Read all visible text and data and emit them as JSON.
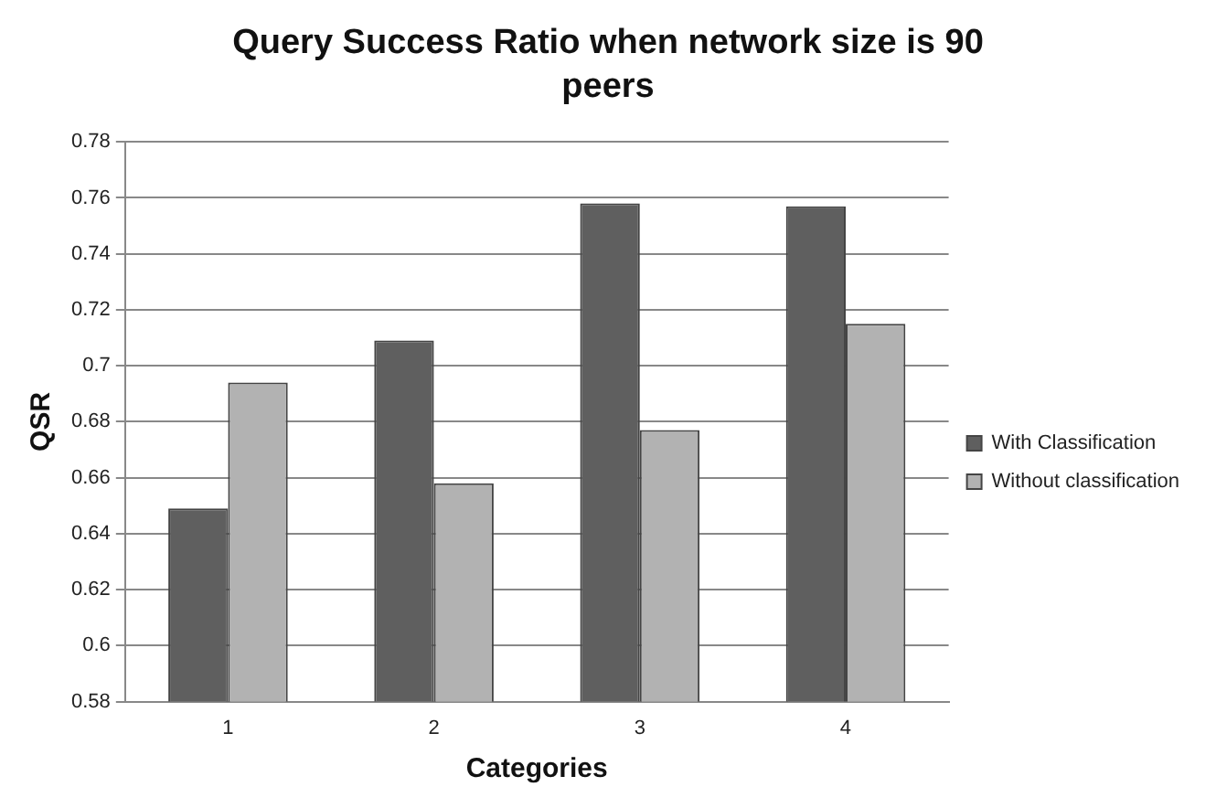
{
  "chart_data": {
    "type": "bar",
    "title": "Query Success Ratio when network size is 90 peers",
    "xlabel": "Categories",
    "ylabel": "QSR",
    "categories": [
      "1",
      "2",
      "3",
      "4"
    ],
    "series": [
      {
        "name": "With Classification",
        "color": "#5f5f5f",
        "values": [
          0.649,
          0.709,
          0.758,
          0.757
        ]
      },
      {
        "name": "Without classification",
        "color": "#b2b2b2",
        "values": [
          0.694,
          0.658,
          0.677,
          0.715
        ]
      }
    ],
    "ylim": [
      0.58,
      0.78
    ],
    "yticks": [
      0.58,
      0.6,
      0.62,
      0.64,
      0.66,
      0.68,
      0.7,
      0.72,
      0.74,
      0.76,
      0.78
    ],
    "grid": "y",
    "legend": "right"
  }
}
